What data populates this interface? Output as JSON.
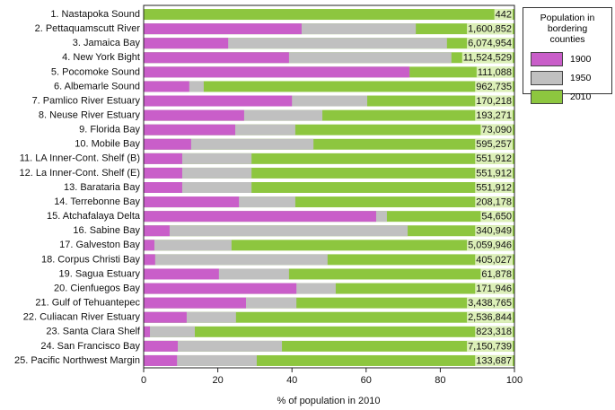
{
  "chart_data": {
    "type": "bar",
    "categories": [
      "1. Nastapoka Sound",
      "2. Pettaquamscutt River",
      "3. Jamaica Bay",
      "4. New York Bight",
      "5. Pocomoke Sound",
      "6. Albemarle Sound",
      "7. Pamlico River Estuary",
      "8. Neuse River Estuary",
      "9. Florida Bay",
      "10. Mobile Bay",
      "11. LA Inner-Cont. Shelf (B)",
      "12. La Inner-Cont. Shelf (E)",
      "13. Barataria Bay",
      "14. Terrebonne Bay",
      "15. Atchafalaya Delta",
      "16. Sabine Bay",
      "17. Galveston Bay",
      "18. Corpus Christi Bay",
      "19. Sagua Estuary",
      "20. Cienfuegos Bay",
      "21. Gulf of Tehuantepec",
      "22. Culiacan River Estuary",
      "23. Santa Clara Shelf",
      "24. San Francisco Bay",
      "25. Pacific Northwest Margin"
    ],
    "series": [
      {
        "name": "1900",
        "color": "#c95ec9",
        "values": [
          0,
          42.6,
          22.8,
          39.2,
          71.7,
          12.3,
          40,
          27.1,
          24.7,
          12.8,
          10.4,
          10.4,
          10.4,
          25.7,
          62.7,
          7,
          2.9,
          3.1,
          20.3,
          41.2,
          27.6,
          11.6,
          1.7,
          9.2,
          9
        ]
      },
      {
        "name": "1950",
        "color": "#c0c0c0",
        "values": [
          0,
          73.4,
          81.8,
          83,
          71.7,
          16.2,
          60.3,
          48.2,
          40.9,
          45.8,
          29.1,
          29.1,
          29.1,
          40.9,
          65.6,
          71.2,
          23.7,
          49.6,
          39.2,
          51.8,
          41.2,
          24.9,
          13.8,
          37.3,
          30.5
        ]
      },
      {
        "name": "2010",
        "color": "#8dc63f",
        "values": [
          100,
          100,
          100,
          100,
          100,
          100,
          100,
          100,
          100,
          100,
          100,
          100,
          100,
          100,
          100,
          100,
          100,
          100,
          100,
          100,
          100,
          100,
          100,
          100,
          100
        ]
      }
    ],
    "annotations": [
      "442",
      "1,600,852",
      "6,074,954",
      "11,524,529",
      "111,088",
      "962,735",
      "170,218",
      "193,271",
      "73,090",
      "595,257",
      "551,912",
      "551,912",
      "551,912",
      "208,178",
      "54,650",
      "340,949",
      "5,059,946",
      "405,027",
      "61,878",
      "171,946",
      "3,438,765",
      "2,536,844",
      "823,318",
      "7,150,739",
      "133,687"
    ],
    "legend_title": "Population in bordering counties",
    "xlabel": "% of population in 2010",
    "xlim": [
      0,
      100
    ],
    "xticks": [
      0,
      20,
      40,
      60,
      80,
      100
    ]
  }
}
